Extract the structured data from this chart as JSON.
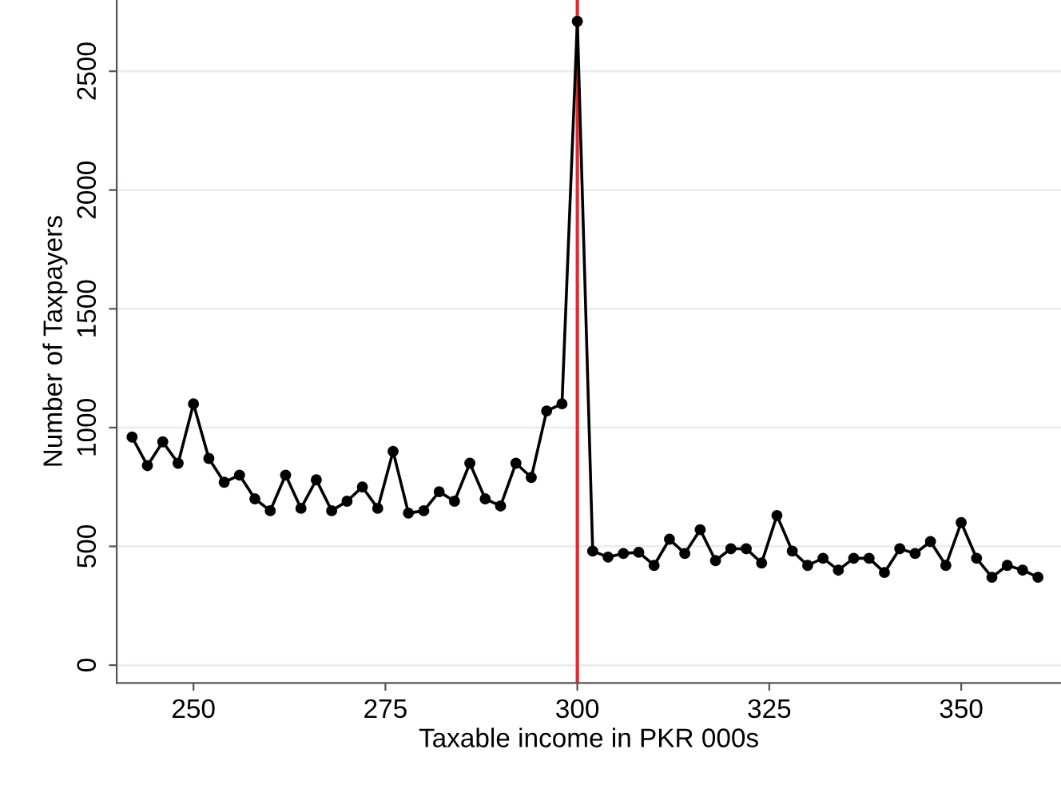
{
  "chart_data": {
    "type": "line",
    "xlabel": "Taxable income in PKR 000s",
    "ylabel": "Number of Taxpayers",
    "x": [
      242,
      244,
      246,
      248,
      250,
      252,
      254,
      256,
      258,
      260,
      262,
      264,
      266,
      268,
      270,
      272,
      274,
      276,
      278,
      280,
      282,
      284,
      286,
      288,
      290,
      292,
      294,
      296,
      298,
      300,
      302,
      304,
      306,
      308,
      310,
      312,
      314,
      316,
      318,
      320,
      322,
      324,
      326,
      328,
      330,
      332,
      334,
      336,
      338,
      340,
      342,
      344,
      346,
      348,
      350,
      352,
      354,
      356,
      358,
      360
    ],
    "series": [
      {
        "color": "#000000",
        "values": [
          960,
          840,
          940,
          850,
          1100,
          870,
          770,
          800,
          700,
          650,
          800,
          660,
          780,
          650,
          690,
          750,
          660,
          900,
          640,
          650,
          730,
          690,
          850,
          700,
          670,
          850,
          790,
          1070,
          1100,
          2710,
          480,
          455,
          470,
          475,
          420,
          530,
          470,
          570,
          440,
          490,
          490,
          430,
          630,
          480,
          420,
          450,
          400,
          450,
          450,
          390,
          490,
          470,
          520,
          420,
          600,
          450,
          370,
          420,
          400,
          370
        ]
      }
    ],
    "marker": "circle",
    "line_style": "solid",
    "xlim": [
      240,
      363
    ],
    "ylim": [
      -75,
      2800
    ],
    "xticks": [
      250,
      275,
      300,
      325,
      350
    ],
    "yticks": [
      0,
      500,
      1000,
      1500,
      2000,
      2500
    ],
    "grid": "y",
    "legend": false,
    "ref_lines": [
      {
        "axis": "x",
        "value": 300,
        "color": "#e8262b",
        "line_style": "solid"
      }
    ]
  }
}
